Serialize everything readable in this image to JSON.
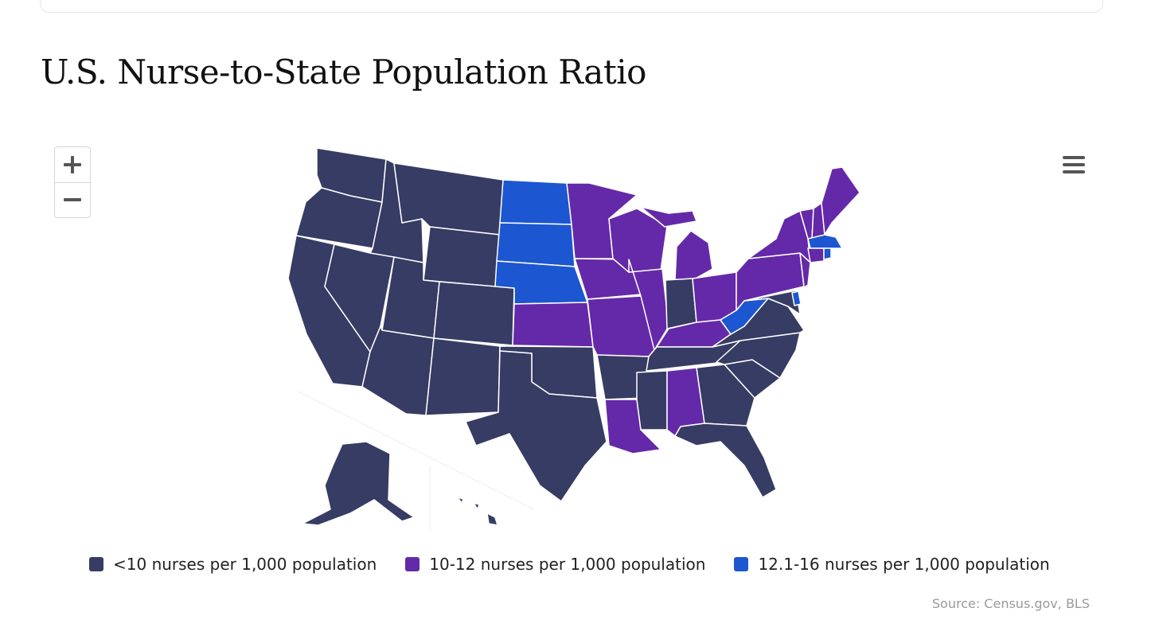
{
  "title": "U.S. Nurse-to-State Population Ratio",
  "controls": {
    "zoom_in_icon": "plus-icon",
    "zoom_out_icon": "minus-icon",
    "menu_icon": "hamburger-menu-icon"
  },
  "colors": {
    "low": "#363c63",
    "mid": "#6429a8",
    "high": "#1c56d0",
    "border": "#ffffff"
  },
  "legend": [
    {
      "label": "<10 nurses per 1,000 population",
      "color": "#363c63"
    },
    {
      "label": "10-12 nurses per 1,000 population",
      "color": "#6429a8"
    },
    {
      "label": "12.1-16 nurses per 1,000 population",
      "color": "#1c56d0"
    }
  ],
  "source": "Source: Census.gov, BLS",
  "states": {
    "WA": "low",
    "OR": "low",
    "CA": "low",
    "ID": "low",
    "NV": "low",
    "MT": "low",
    "WY": "low",
    "UT": "low",
    "AZ": "low",
    "CO": "low",
    "NM": "low",
    "TX": "low",
    "OK": "low",
    "AR": "low",
    "MS": "low",
    "TN": "low",
    "GA": "low",
    "FL": "low",
    "SC": "low",
    "NC": "low",
    "VA": "low",
    "IN": "low",
    "MD": "low",
    "AK": "low",
    "HI": "low",
    "MN": "mid",
    "WI": "mid",
    "IA": "mid",
    "MO": "mid",
    "IL": "mid",
    "MI": "mid",
    "OH": "mid",
    "KY": "mid",
    "KS": "mid",
    "LA": "mid",
    "AL": "mid",
    "PA": "mid",
    "NY": "mid",
    "NJ": "mid",
    "VT": "mid",
    "NH": "mid",
    "ME": "mid",
    "CT": "mid",
    "ND": "high",
    "SD": "high",
    "NE": "high",
    "WV": "high",
    "MA": "high",
    "RI": "high",
    "DE": "high"
  }
}
